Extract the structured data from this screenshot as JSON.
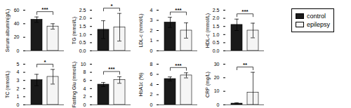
{
  "chart_data": [
    {
      "type": "bar",
      "ylabel": "Serum albumin(g/L)",
      "categories": [
        null
      ],
      "series": [
        {
          "name": "control",
          "color": "#1a1a1a",
          "values": [
            46
          ],
          "errors": [
            4
          ]
        },
        {
          "name": "epilepsy",
          "color": "#f5f5f5",
          "values": [
            36
          ],
          "errors": [
            4
          ]
        }
      ],
      "ylim": [
        0,
        60
      ],
      "yticks": [
        0,
        20,
        40,
        60
      ],
      "annotations": [
        "***"
      ],
      "tick_labels": "y"
    },
    {
      "type": "bar",
      "ylabel": "TG (mmol/L)",
      "categories": [
        null
      ],
      "series": [
        {
          "name": "control",
          "color": "#1a1a1a",
          "values": [
            1.3
          ],
          "errors": [
            0.55
          ]
        },
        {
          "name": "epilepsy",
          "color": "#f5f5f5",
          "values": [
            1.45
          ],
          "errors": [
            0.85
          ]
        }
      ],
      "ylim": [
        0.0,
        2.5
      ],
      "yticks": [
        {
          "value": 0,
          "label": "0.0"
        },
        0.5,
        {
          "value": 1,
          "label": "1.0"
        },
        1.5,
        {
          "value": 2,
          "label": "2.0"
        },
        2.5
      ],
      "annotations": [
        "*"
      ],
      "tick_labels": "y"
    },
    {
      "type": "bar",
      "ylabel": "LDL-c (mmol/L)",
      "categories": [
        null
      ],
      "series": [
        {
          "name": "control",
          "color": "#1a1a1a",
          "values": [
            2.8
          ],
          "errors": [
            0.5
          ]
        },
        {
          "name": "epilepsy",
          "color": "#f5f5f5",
          "values": [
            2.0
          ],
          "errors": [
            0.75
          ]
        }
      ],
      "ylim": [
        0,
        4
      ],
      "yticks": [
        0,
        1,
        2,
        3,
        4
      ],
      "annotations": [
        "***"
      ],
      "tick_labels": "y"
    },
    {
      "type": "bar",
      "ylabel": "HDL-c (mmol/L)",
      "categories": [
        null
      ],
      "series": [
        {
          "name": "control",
          "color": "#1a1a1a",
          "values": [
            1.6
          ],
          "errors": [
            0.35
          ]
        },
        {
          "name": "epilepsy",
          "color": "#f5f5f5",
          "values": [
            1.25
          ],
          "errors": [
            0.45
          ]
        }
      ],
      "ylim": [
        0.0,
        2.5
      ],
      "yticks": [
        {
          "value": 0,
          "label": "0.0"
        },
        0.5,
        {
          "value": 1,
          "label": "1.0"
        },
        1.5,
        {
          "value": 2,
          "label": "2.0"
        },
        2.5
      ],
      "annotations": [
        "***"
      ],
      "tick_labels": "y",
      "legend": "upper right"
    },
    {
      "type": "bar",
      "ylabel": "TC (mmol/L)",
      "categories": [
        null
      ],
      "series": [
        {
          "name": "control",
          "color": "#1a1a1a",
          "values": [
            3.05
          ],
          "errors": [
            0.7
          ]
        },
        {
          "name": "epilepsy",
          "color": "#f5f5f5",
          "values": [
            3.45
          ],
          "errors": [
            0.9
          ]
        }
      ],
      "ylim": [
        0,
        5
      ],
      "yticks": [
        0,
        1,
        2,
        3,
        4,
        5
      ],
      "annotations": [
        "*"
      ],
      "tick_labels": "y"
    },
    {
      "type": "bar",
      "ylabel": "Fasting Glu (mmol/L)",
      "categories": [
        null
      ],
      "series": [
        {
          "name": "control",
          "color": "#1a1a1a",
          "values": [
            5.0
          ],
          "errors": [
            0.5
          ]
        },
        {
          "name": "epilepsy",
          "color": "#f5f5f5",
          "values": [
            6.1
          ],
          "errors": [
            0.8
          ]
        }
      ],
      "ylim": [
        0,
        10
      ],
      "yticks": [
        0,
        2,
        4,
        6,
        8,
        10
      ],
      "annotations": [
        "***"
      ],
      "tick_labels": "y"
    },
    {
      "type": "bar",
      "ylabel": "HbA1c (%)",
      "categories": [
        null
      ],
      "series": [
        {
          "name": "control",
          "color": "#1a1a1a",
          "values": [
            5.1
          ],
          "errors": [
            0.4
          ]
        },
        {
          "name": "epilepsy",
          "color": "#f5f5f5",
          "values": [
            5.8
          ],
          "errors": [
            0.5
          ]
        }
      ],
      "ylim": [
        0,
        8
      ],
      "yticks": [
        0,
        2,
        4,
        6,
        8
      ],
      "annotations": [
        "***"
      ],
      "tick_labels": "y"
    },
    {
      "type": "bar",
      "ylabel": "CRP (mg/L)",
      "categories": [
        null
      ],
      "series": [
        {
          "name": "control",
          "color": "#1a1a1a",
          "values": [
            1.0
          ],
          "errors": [
            0.5
          ]
        },
        {
          "name": "epilepsy",
          "color": "#f5f5f5",
          "values": [
            9.0
          ],
          "errors": [
            15.0
          ]
        }
      ],
      "ylim": [
        0,
        30
      ],
      "yticks": [
        0,
        10,
        20,
        30
      ],
      "annotations": [
        "**"
      ],
      "tick_labels": "y"
    }
  ]
}
